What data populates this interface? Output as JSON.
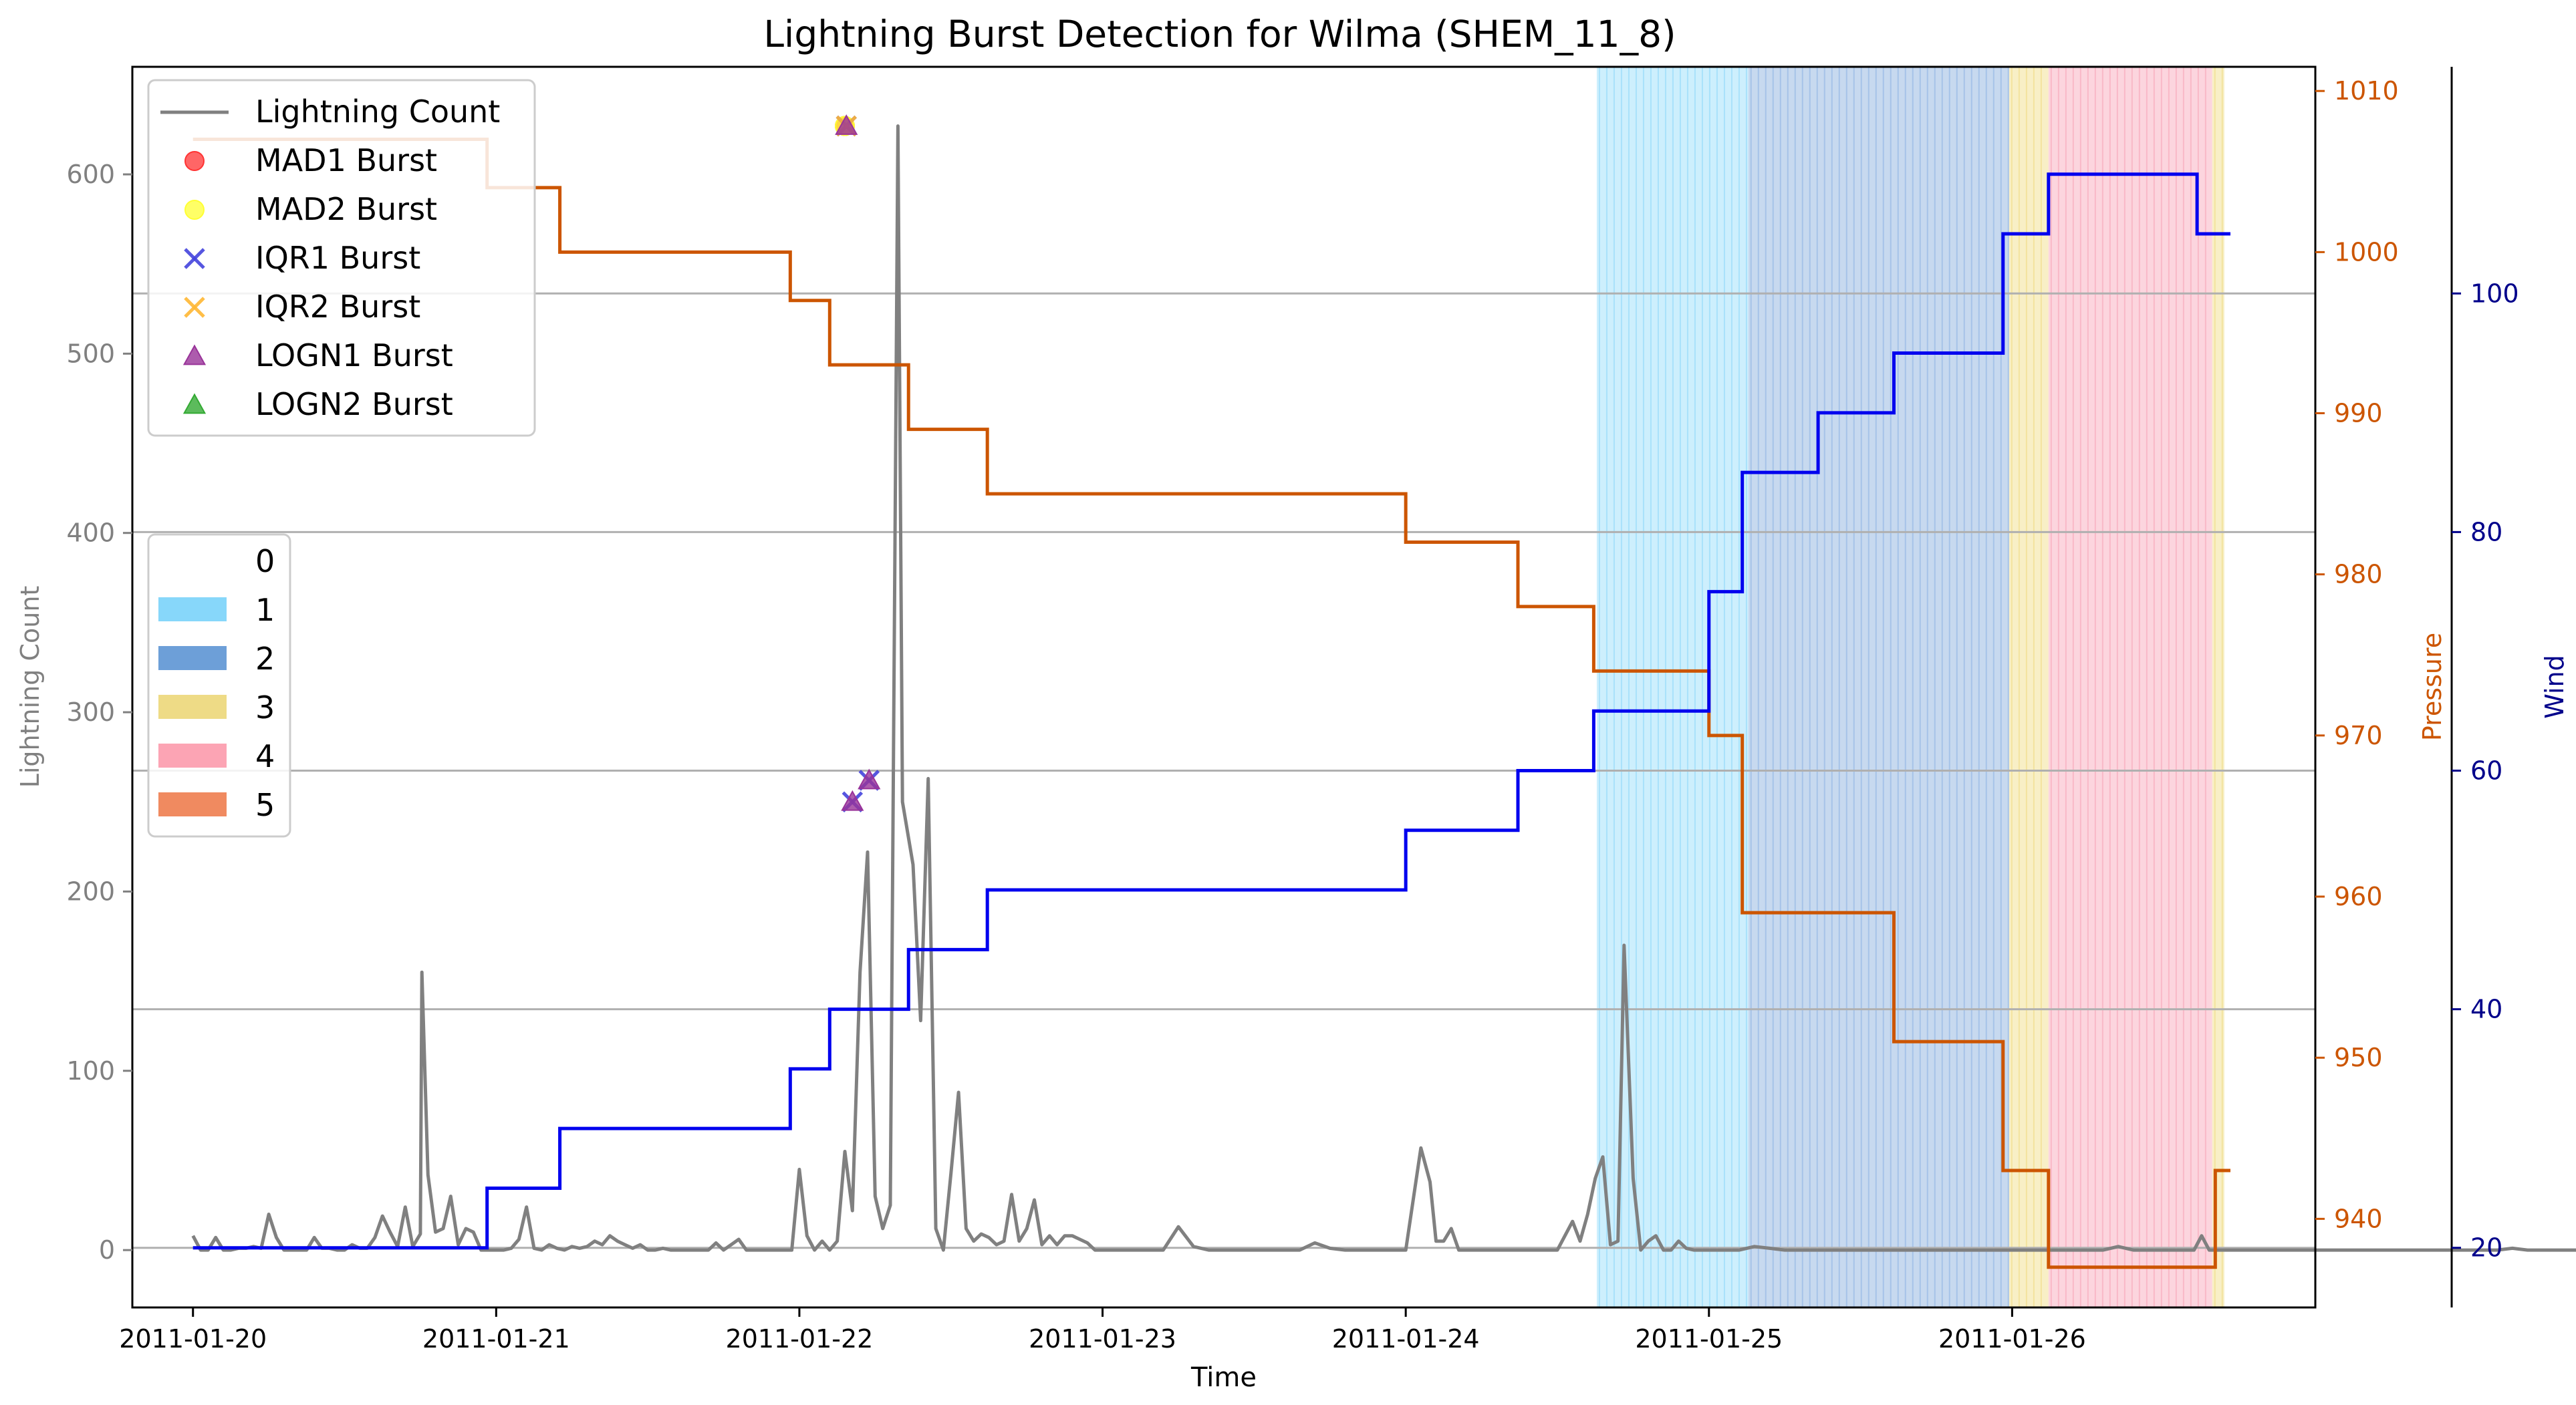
{
  "chart_data": {
    "type": "line",
    "title": "Lightning Burst Detection for Wilma (SHEM_11_8)",
    "xlabel": "Time",
    "x_ticks": [
      "2011-01-20",
      "2011-01-21",
      "2011-01-22",
      "2011-01-23",
      "2011-01-24",
      "2011-01-25",
      "2011-01-26"
    ],
    "x_range_days": [
      -0.2,
      7.0
    ],
    "left_axis": {
      "label": "Lightning Count",
      "ticks": [
        0,
        100,
        200,
        300,
        400,
        500,
        600
      ],
      "ylim": [
        -32,
        660
      ],
      "color": "#808080"
    },
    "pressure_axis": {
      "label": "Pressure",
      "ticks": [
        940,
        950,
        960,
        970,
        980,
        990,
        1000,
        1010
      ],
      "ylim": [
        934.5,
        1011.5
      ],
      "color": "#cc5500"
    },
    "wind_axis": {
      "label": "Wind",
      "ticks": [
        20,
        40,
        60,
        80,
        100
      ],
      "ylim": [
        15,
        119
      ],
      "color": "#00008b"
    },
    "grid": "horizontal at wind ticks",
    "lightning_series": {
      "name": "Lightning Count",
      "color": "#808080",
      "points": [
        [
          0.0,
          8
        ],
        [
          0.025,
          0
        ],
        [
          0.05,
          0
        ],
        [
          0.075,
          7
        ],
        [
          0.1,
          0
        ],
        [
          0.125,
          0
        ],
        [
          0.15,
          1
        ],
        [
          0.175,
          1
        ],
        [
          0.2,
          2
        ],
        [
          0.225,
          1
        ],
        [
          0.25,
          20
        ],
        [
          0.275,
          7
        ],
        [
          0.3,
          0
        ],
        [
          0.325,
          0
        ],
        [
          0.35,
          0
        ],
        [
          0.375,
          0
        ],
        [
          0.4,
          7
        ],
        [
          0.425,
          1
        ],
        [
          0.45,
          1
        ],
        [
          0.475,
          0
        ],
        [
          0.5,
          0
        ],
        [
          0.525,
          3
        ],
        [
          0.55,
          1
        ],
        [
          0.575,
          1
        ],
        [
          0.6,
          7
        ],
        [
          0.625,
          19
        ],
        [
          0.65,
          10
        ],
        [
          0.675,
          2
        ],
        [
          0.7,
          24
        ],
        [
          0.725,
          2
        ],
        [
          0.75,
          9
        ],
        [
          0.755,
          155
        ],
        [
          0.775,
          42
        ],
        [
          0.8,
          10
        ],
        [
          0.825,
          12
        ],
        [
          0.85,
          30
        ],
        [
          0.875,
          3
        ],
        [
          0.9,
          12
        ],
        [
          0.925,
          10
        ],
        [
          0.95,
          0
        ],
        [
          0.975,
          0
        ],
        [
          1.0,
          0
        ],
        [
          1.025,
          0
        ],
        [
          1.05,
          1
        ],
        [
          1.075,
          6
        ],
        [
          1.1,
          24
        ],
        [
          1.125,
          1
        ],
        [
          1.15,
          0
        ],
        [
          1.175,
          3
        ],
        [
          1.2,
          1
        ],
        [
          1.225,
          0
        ],
        [
          1.25,
          2
        ],
        [
          1.275,
          1
        ],
        [
          1.3,
          2
        ],
        [
          1.325,
          5
        ],
        [
          1.35,
          3
        ],
        [
          1.375,
          8
        ],
        [
          1.4,
          5
        ],
        [
          1.425,
          3
        ],
        [
          1.45,
          1
        ],
        [
          1.475,
          3
        ],
        [
          1.5,
          0
        ],
        [
          1.525,
          0
        ],
        [
          1.55,
          1
        ],
        [
          1.575,
          0
        ],
        [
          1.6,
          0
        ],
        [
          1.625,
          0
        ],
        [
          1.65,
          0
        ],
        [
          1.675,
          0
        ],
        [
          1.7,
          0
        ],
        [
          1.725,
          4
        ],
        [
          1.75,
          0
        ],
        [
          1.775,
          3
        ],
        [
          1.8,
          6
        ],
        [
          1.825,
          0
        ],
        [
          1.85,
          0
        ],
        [
          1.875,
          0
        ],
        [
          1.9,
          0
        ],
        [
          1.925,
          0
        ],
        [
          1.95,
          0
        ],
        [
          1.975,
          0
        ],
        [
          2.0,
          45
        ],
        [
          2.025,
          8
        ],
        [
          2.05,
          0
        ],
        [
          2.075,
          5
        ],
        [
          2.1,
          0
        ],
        [
          2.125,
          5
        ],
        [
          2.15,
          55
        ],
        [
          2.175,
          22
        ],
        [
          2.2,
          155
        ],
        [
          2.225,
          222
        ],
        [
          2.25,
          30
        ],
        [
          2.275,
          12
        ],
        [
          2.3,
          25
        ],
        [
          2.325,
          627
        ],
        [
          2.34,
          250
        ],
        [
          2.375,
          215
        ],
        [
          2.4,
          128
        ],
        [
          2.425,
          263
        ],
        [
          2.45,
          12
        ],
        [
          2.475,
          0
        ],
        [
          2.5,
          43
        ],
        [
          2.525,
          88
        ],
        [
          2.55,
          12
        ],
        [
          2.575,
          5
        ],
        [
          2.6,
          9
        ],
        [
          2.625,
          7
        ],
        [
          2.65,
          3
        ],
        [
          2.675,
          5
        ],
        [
          2.7,
          31
        ],
        [
          2.725,
          5
        ],
        [
          2.75,
          12
        ],
        [
          2.775,
          28
        ],
        [
          2.8,
          3
        ],
        [
          2.825,
          8
        ],
        [
          2.85,
          3
        ],
        [
          2.875,
          8
        ],
        [
          2.9,
          8
        ],
        [
          2.925,
          6
        ],
        [
          2.95,
          4
        ],
        [
          2.975,
          0
        ],
        [
          3.0,
          0
        ],
        [
          3.2,
          0
        ],
        [
          3.25,
          13
        ],
        [
          3.3,
          2
        ],
        [
          3.35,
          0
        ],
        [
          3.4,
          0
        ],
        [
          3.5,
          0
        ],
        [
          3.6,
          0
        ],
        [
          3.65,
          0
        ],
        [
          3.7,
          4
        ],
        [
          3.75,
          1
        ],
        [
          3.8,
          0
        ],
        [
          3.9,
          0
        ],
        [
          3.95,
          0
        ],
        [
          4.0,
          0
        ],
        [
          4.05,
          57
        ],
        [
          4.08,
          38
        ],
        [
          4.1,
          5
        ],
        [
          4.125,
          5
        ],
        [
          4.15,
          12
        ],
        [
          4.175,
          0
        ],
        [
          4.2,
          0
        ],
        [
          4.3,
          0
        ],
        [
          4.4,
          0
        ],
        [
          4.5,
          0
        ],
        [
          4.55,
          16
        ],
        [
          4.575,
          5
        ],
        [
          4.6,
          20
        ],
        [
          4.625,
          40
        ],
        [
          4.65,
          52
        ],
        [
          4.675,
          3
        ],
        [
          4.7,
          5
        ],
        [
          4.72,
          170
        ],
        [
          4.75,
          40
        ],
        [
          4.775,
          0
        ],
        [
          4.8,
          5
        ],
        [
          4.825,
          8
        ],
        [
          4.85,
          0
        ],
        [
          4.875,
          0
        ],
        [
          4.9,
          5
        ],
        [
          4.925,
          1
        ],
        [
          4.95,
          0
        ],
        [
          5.0,
          0
        ],
        [
          5.1,
          0
        ],
        [
          5.15,
          2
        ],
        [
          5.2,
          1
        ],
        [
          5.25,
          0
        ],
        [
          5.5,
          0
        ],
        [
          6.0,
          0
        ],
        [
          6.2,
          0
        ],
        [
          6.3,
          0
        ],
        [
          6.35,
          2
        ],
        [
          6.4,
          0
        ],
        [
          6.5,
          0
        ],
        [
          6.6,
          0
        ],
        [
          6.625,
          8
        ],
        [
          6.65,
          0
        ],
        [
          6.7,
          0
        ],
        [
          7.2,
          0
        ],
        [
          7.5,
          0
        ],
        [
          7.6,
          0
        ],
        [
          7.65,
          1
        ],
        [
          7.7,
          0
        ],
        [
          7.8,
          0
        ],
        [
          7.9,
          0
        ],
        [
          8.0,
          0
        ],
        [
          8.05,
          0
        ],
        [
          8.1,
          2
        ],
        [
          8.15,
          0
        ],
        [
          8.2,
          0
        ],
        [
          8.3,
          0
        ],
        [
          8.4,
          0
        ],
        [
          8.5,
          0
        ],
        [
          8.55,
          1
        ],
        [
          8.6,
          0
        ],
        [
          8.65,
          0
        ],
        [
          8.7,
          0
        ],
        [
          8.75,
          0
        ],
        [
          8.8,
          0
        ],
        [
          8.85,
          0
        ],
        [
          8.9,
          0
        ],
        [
          8.95,
          1
        ],
        [
          9.0,
          0
        ],
        [
          9.05,
          1
        ]
      ]
    },
    "pressure_series": {
      "name": "Pressure",
      "color": "#cc5500",
      "steps": [
        [
          0.0,
          1007
        ],
        [
          0.97,
          1004
        ],
        [
          1.21,
          1000
        ],
        [
          1.97,
          997
        ],
        [
          2.1,
          993
        ],
        [
          2.36,
          989
        ],
        [
          2.62,
          985
        ],
        [
          4.0,
          982
        ],
        [
          4.37,
          978
        ],
        [
          4.62,
          974
        ],
        [
          5.0,
          970
        ],
        [
          5.11,
          959
        ],
        [
          5.61,
          951
        ],
        [
          5.97,
          943
        ],
        [
          6.12,
          937
        ],
        [
          6.67,
          943
        ],
        [
          6.72,
          943
        ]
      ]
    },
    "wind_series": {
      "name": "Wind",
      "color": "#0000ee",
      "steps": [
        [
          0.0,
          20
        ],
        [
          0.97,
          25
        ],
        [
          1.21,
          30
        ],
        [
          1.97,
          35
        ],
        [
          2.1,
          40
        ],
        [
          2.36,
          45
        ],
        [
          2.62,
          50
        ],
        [
          4.0,
          55
        ],
        [
          4.37,
          60
        ],
        [
          4.62,
          65
        ],
        [
          5.0,
          75
        ],
        [
          5.11,
          85
        ],
        [
          5.36,
          90
        ],
        [
          5.61,
          95
        ],
        [
          5.97,
          105
        ],
        [
          6.12,
          110
        ],
        [
          6.61,
          105
        ],
        [
          6.72,
          105
        ]
      ]
    },
    "bursts": [
      {
        "name": "MAD1 Burst",
        "marker": "circle",
        "color": "#ff3333",
        "points": [
          [
            2.15,
            627
          ]
        ]
      },
      {
        "name": "MAD2 Burst",
        "marker": "circle",
        "color": "#ffff33",
        "points": [
          [
            2.15,
            627
          ]
        ]
      },
      {
        "name": "IQR1 Burst",
        "marker": "x",
        "color": "#4444dd",
        "points": [
          [
            2.155,
            627
          ],
          [
            2.175,
            250
          ],
          [
            2.23,
            262
          ]
        ]
      },
      {
        "name": "IQR2 Burst",
        "marker": "x",
        "color": "#ffb733",
        "points": [
          [
            2.155,
            627
          ]
        ]
      },
      {
        "name": "LOGN1 Burst",
        "marker": "triangle",
        "color": "#993399",
        "points": [
          [
            2.155,
            627
          ],
          [
            2.175,
            250
          ],
          [
            2.23,
            262
          ]
        ]
      },
      {
        "name": "LOGN2 Burst",
        "marker": "triangle",
        "color": "#33aa33",
        "points": []
      }
    ],
    "category_bands": [
      {
        "category": "1",
        "x_start": 4.63,
        "x_end": 5.13
      },
      {
        "category": "2",
        "x_start": 5.13,
        "x_end": 5.99
      },
      {
        "category": "3",
        "x_start": 5.99,
        "x_end": 6.12
      },
      {
        "category": "4",
        "x_start": 6.12,
        "x_end": 6.66
      },
      {
        "category": "3",
        "x_start": 6.66,
        "x_end": 6.7
      }
    ],
    "category_legend": [
      {
        "label": "0",
        "color": "#ffffff"
      },
      {
        "label": "1",
        "color": "#87d7fa"
      },
      {
        "label": "2",
        "color": "#6d9fd8"
      },
      {
        "label": "3",
        "color": "#eedb86"
      },
      {
        "label": "4",
        "color": "#fca4b4"
      },
      {
        "label": "5",
        "color": "#f08a60"
      }
    ],
    "band_colors": {
      "1": "#cdeffd",
      "2": "#c7d9ef",
      "3": "#f8efc6",
      "4": "#fcd5de"
    },
    "band_stripe_colors": {
      "1": "#a9e2fb",
      "2": "#a6c3e8",
      "3": "#f3e39e",
      "4": "#f9b8c7"
    }
  }
}
